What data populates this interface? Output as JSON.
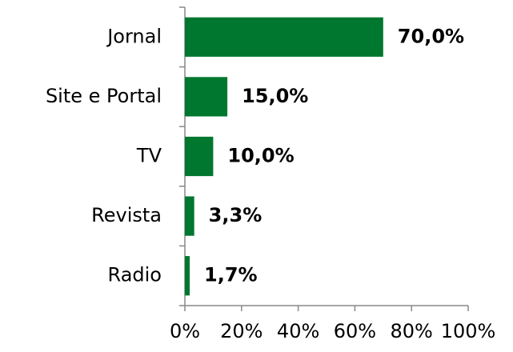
{
  "chart_data": {
    "type": "bar",
    "orientation": "horizontal",
    "categories": [
      "Jornal",
      "Site e Portal",
      "TV",
      "Revista",
      "Radio"
    ],
    "values": [
      70,
      15,
      10,
      3.3,
      1.7
    ],
    "value_labels": [
      "70,0%",
      "15,0%",
      "10,0%",
      "3,3%",
      "1,7%"
    ],
    "color": "#00772f",
    "xlim": [
      0,
      100
    ],
    "xticks": [
      {
        "value": 0,
        "label": "0%"
      },
      {
        "value": 20,
        "label": "20%"
      },
      {
        "value": 40,
        "label": "40%"
      },
      {
        "value": 60,
        "label": "60%"
      },
      {
        "value": 80,
        "label": "80%"
      },
      {
        "value": 100,
        "label": "100%"
      }
    ]
  }
}
